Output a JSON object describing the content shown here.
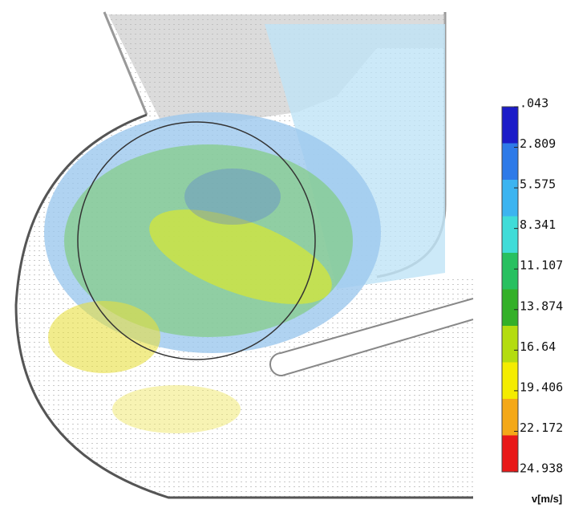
{
  "chart_data": {
    "type": "contour",
    "colorbar_label": "v[m/s]",
    "colorbar_ticks": [
      {
        "value": 0.043,
        "label": ".043"
      },
      2.809,
      5.575,
      8.341,
      11.107,
      13.874,
      16.64,
      19.406,
      22.172,
      24.938
    ],
    "colorbar_colors": [
      "#1c1cc8",
      "#2e7ae8",
      "#3cb4f0",
      "#40dcd8",
      "#28c060",
      "#34b028",
      "#b4dc10",
      "#f4ec00",
      "#f4a818",
      "#e81818"
    ]
  }
}
